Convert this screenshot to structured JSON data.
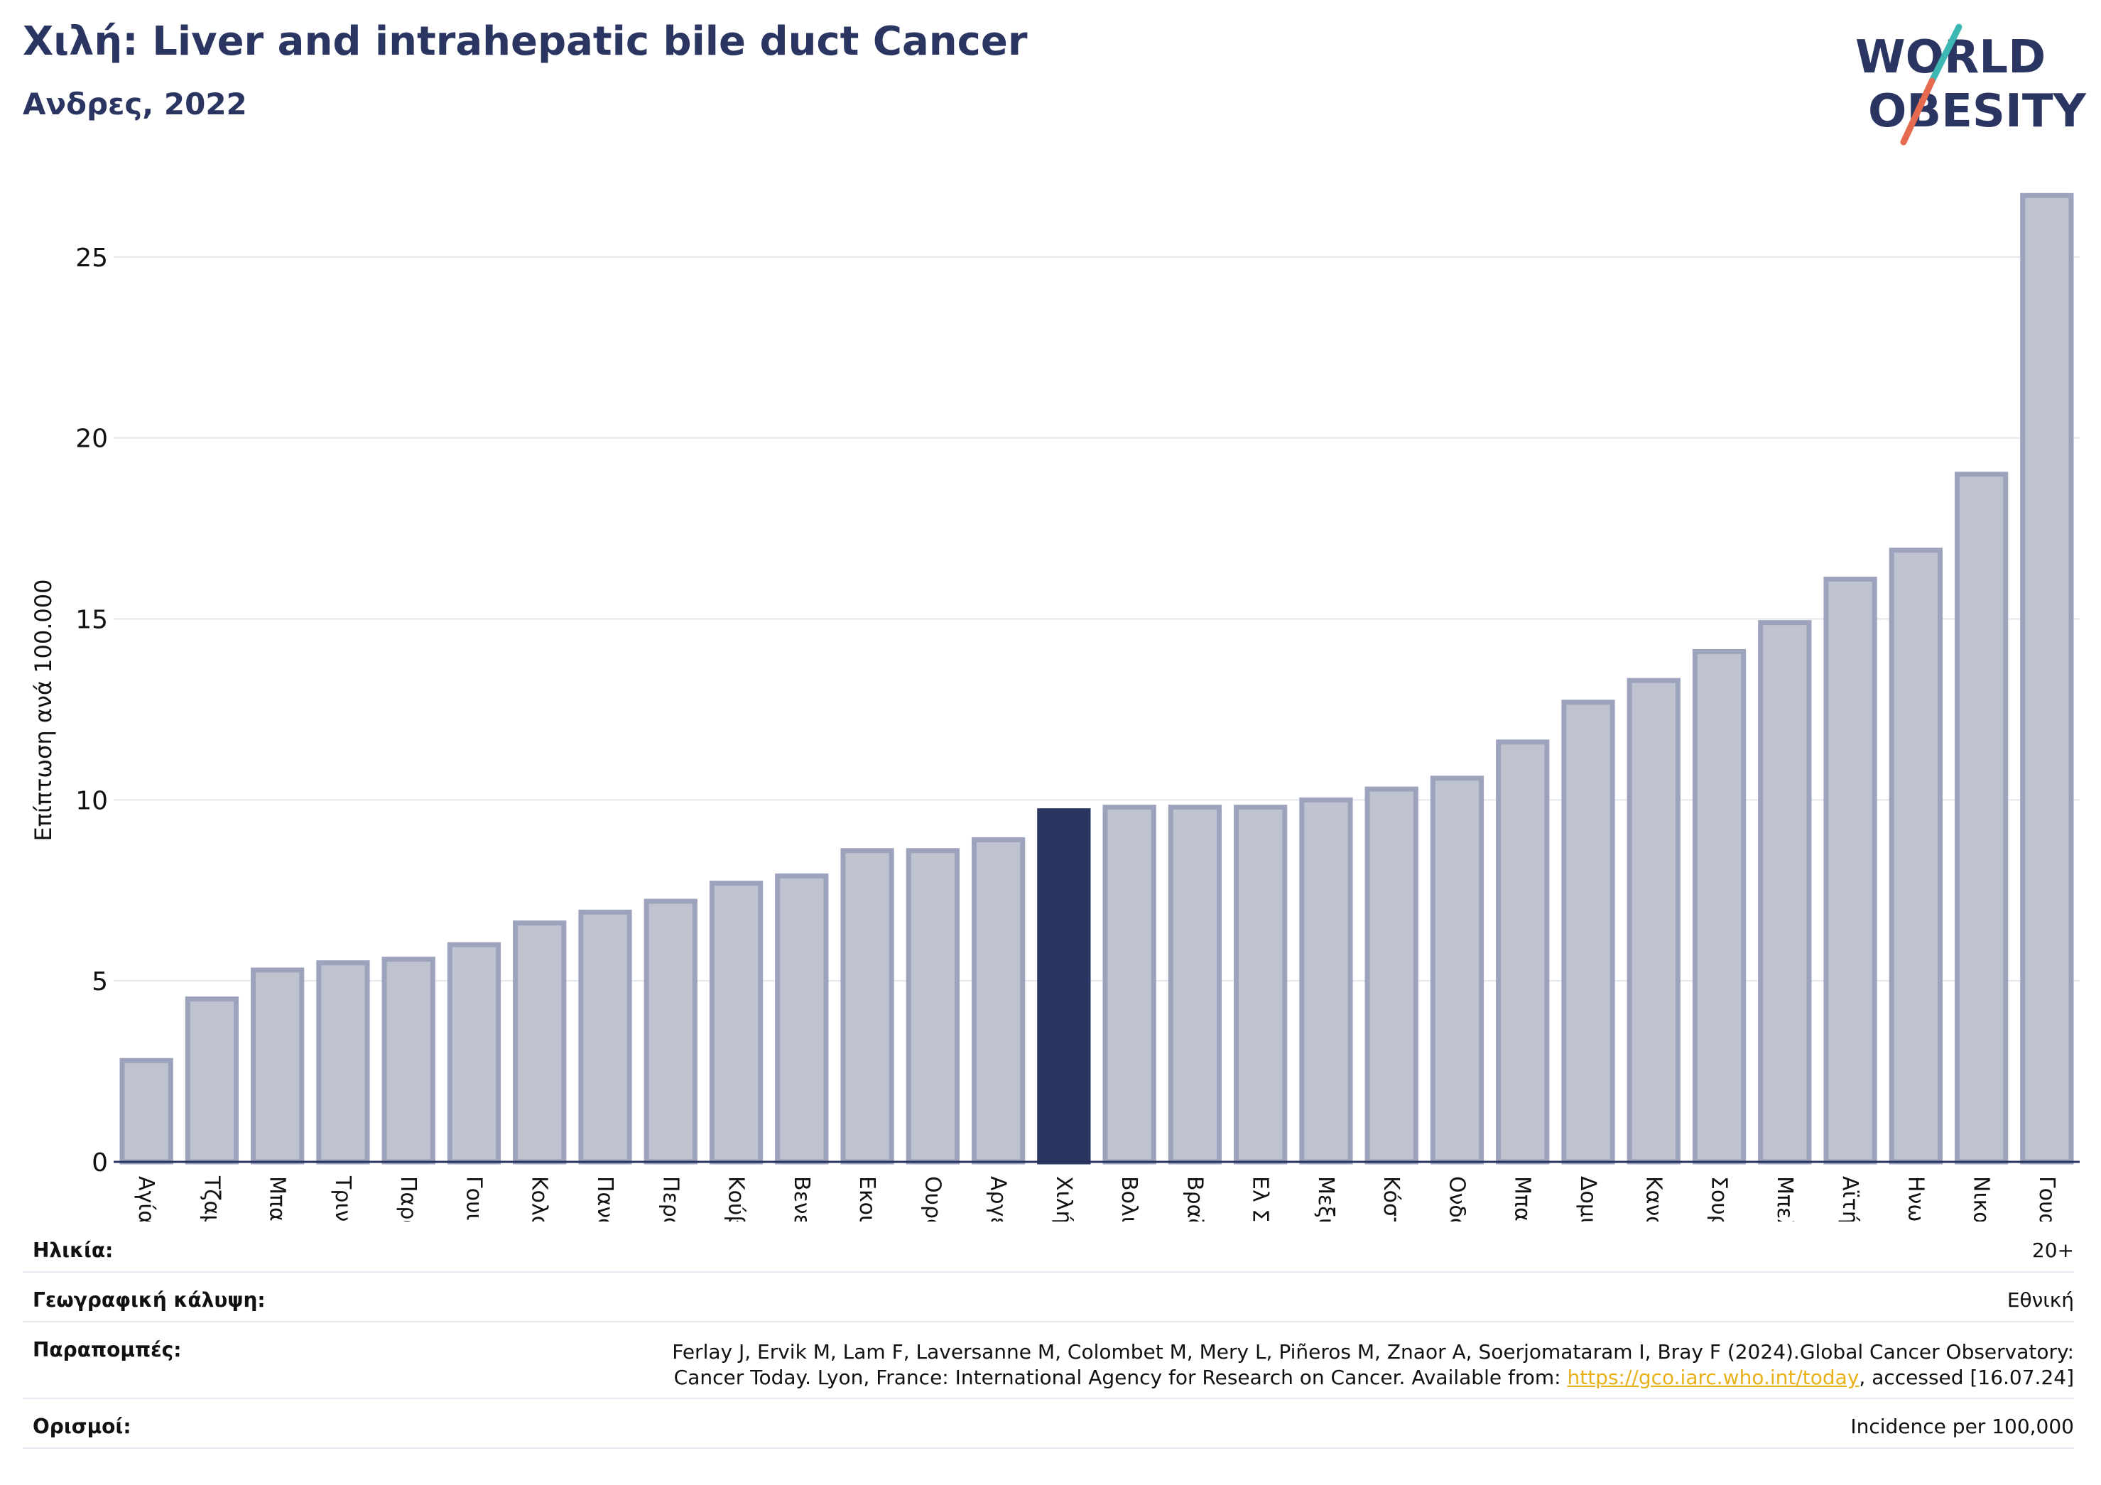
{
  "header": {
    "title": "Χιλή: Liver and intrahepatic bile duct Cancer",
    "subtitle": "Ανδρες, 2022"
  },
  "logo": {
    "line1": "WORLD",
    "line2": "OBESITY",
    "accent_colors": [
      "#3cb7b2",
      "#e56a4f"
    ],
    "text_color": "#2a3561"
  },
  "colors": {
    "bar": "#bfc2cf",
    "bar_border": "#9ea3bd",
    "highlight": "#2a3561",
    "title": "#2a3561"
  },
  "chart_data": {
    "type": "bar",
    "title": "Χιλή: Liver and intrahepatic bile duct Cancer",
    "subtitle": "Ανδρες, 2022",
    "xlabel": "",
    "ylabel": "Επίπτωση ανά 100.000",
    "ylim": [
      0,
      27
    ],
    "yticks": [
      0,
      5,
      10,
      15,
      20,
      25
    ],
    "grid": true,
    "highlight": "Χιλή",
    "categories": [
      "Αγία Λουκία",
      "Τζαμάικα",
      "Μπαρμπάντος",
      "Τρινιντάντ και Τομπάγκο",
      "Παραγουάη",
      "Γουιάνα",
      "Κολομβία",
      "Παναμάς",
      "Περού",
      "Κούβα",
      "Βενεζουέλα",
      "Εκουαδόρ",
      "Ουρουγουάη",
      "Αργεντινή",
      "Χιλή",
      "Βολιβία",
      "Βραζιλία",
      "Ελ Σαλβαδόρ",
      "Μεξικό",
      "Κόστα Ρίκα",
      "Ονδούρα",
      "Μπαχάμες",
      "Δομινικανή Δημοκρατία",
      "Καναδάς",
      "Σουρινάμ",
      "Μπελίζ",
      "Αϊτή",
      "Ηνωμένες Πολιτείες",
      "Νικαράγουα",
      "Γουατεμάλα"
    ],
    "values": [
      2.8,
      4.5,
      5.3,
      5.5,
      5.6,
      6.0,
      6.6,
      6.9,
      7.2,
      7.7,
      7.9,
      8.6,
      8.6,
      8.9,
      9.7,
      9.8,
      9.8,
      9.8,
      10.0,
      10.3,
      10.6,
      11.6,
      12.7,
      13.3,
      14.1,
      14.9,
      16.1,
      16.9,
      19.0,
      26.7
    ]
  },
  "meta": {
    "age_label": "Ηλικία:",
    "age_value": "20+",
    "coverage_label": "Γεωγραφική κάλυψη:",
    "coverage_value": "Εθνική",
    "references_label": "Παραπομπές:",
    "references_line1": "Ferlay J, Ervik M, Lam F, Laversanne M, Colombet M, Mery L, Piñeros M, Znaor A, Soerjomataram I, Bray F (2024).Global Cancer Observatory:",
    "references_line2_pre": "Cancer Today. Lyon, France: International Agency for Research on Cancer. Available from: ",
    "references_link": "https://gco.iarc.who.int/today",
    "references_line2_post": ", accessed [16.07.24]",
    "definitions_label": "Ορισμοί:",
    "definitions_value": "Incidence per 100,000"
  }
}
